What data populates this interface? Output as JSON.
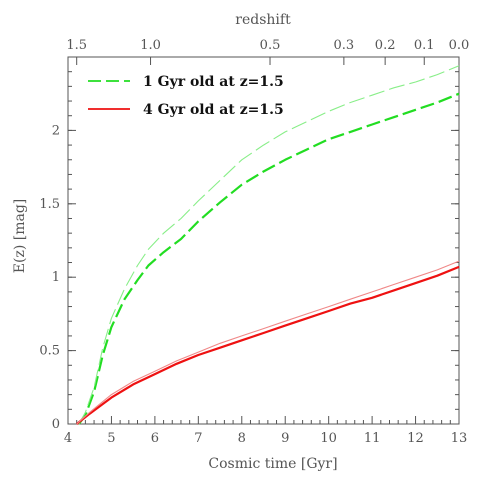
{
  "chart_data": {
    "type": "line",
    "xlabel": "Cosmic time [Gyr]",
    "ylabel": "E(z) [mag]",
    "top_axis_label": "redshift",
    "xlim": [
      4,
      13
    ],
    "ylim": [
      0,
      2.5
    ],
    "x_ticks": [
      4,
      5,
      6,
      7,
      8,
      9,
      10,
      11,
      12,
      13
    ],
    "x_tick_labels": [
      "4",
      "5",
      "6",
      "7",
      "8",
      "9",
      "10",
      "11",
      "12",
      "13"
    ],
    "y_ticks": [
      0,
      0.5,
      1,
      1.5,
      2
    ],
    "y_tick_labels": [
      "0",
      "0.5",
      "1",
      "1.5",
      "2"
    ],
    "top_ticks": [
      {
        "label": "1.5",
        "x": 4.2
      },
      {
        "label": "1.0",
        "x": 5.9
      },
      {
        "label": "0.5",
        "x": 8.65
      },
      {
        "label": "0.3",
        "x": 10.35
      },
      {
        "label": "0.2",
        "x": 11.3
      },
      {
        "label": "0.1",
        "x": 12.2
      },
      {
        "label": "0.0",
        "x": 13.0
      }
    ],
    "legend": [
      {
        "label": "1 Gyr old at z=1.5",
        "color": "#22dd22",
        "style": "dashed"
      },
      {
        "label": "4 Gyr old at z=1.5",
        "color": "#ee1111",
        "style": "solid"
      }
    ],
    "series": [
      {
        "color": "#22dd22",
        "style": "dashed",
        "weight": "thick",
        "points": [
          [
            4.25,
            0
          ],
          [
            4.4,
            0.06
          ],
          [
            4.6,
            0.22
          ],
          [
            4.8,
            0.47
          ],
          [
            5.0,
            0.66
          ],
          [
            5.3,
            0.85
          ],
          [
            5.6,
            0.98
          ],
          [
            5.85,
            1.08
          ],
          [
            6.2,
            1.17
          ],
          [
            6.6,
            1.26
          ],
          [
            7.0,
            1.38
          ],
          [
            7.5,
            1.51
          ],
          [
            8.0,
            1.63
          ],
          [
            8.5,
            1.72
          ],
          [
            9.0,
            1.8
          ],
          [
            9.5,
            1.87
          ],
          [
            10.0,
            1.94
          ],
          [
            10.5,
            1.99
          ],
          [
            11.0,
            2.04
          ],
          [
            11.5,
            2.09
          ],
          [
            12.0,
            2.14
          ],
          [
            12.5,
            2.19
          ],
          [
            13.0,
            2.25
          ]
        ]
      },
      {
        "color": "#88ee88",
        "style": "dashed",
        "weight": "thin",
        "points": [
          [
            4.25,
            0
          ],
          [
            4.4,
            0.08
          ],
          [
            4.6,
            0.25
          ],
          [
            4.8,
            0.52
          ],
          [
            5.0,
            0.72
          ],
          [
            5.3,
            0.92
          ],
          [
            5.6,
            1.08
          ],
          [
            5.85,
            1.19
          ],
          [
            6.2,
            1.3
          ],
          [
            6.6,
            1.4
          ],
          [
            7.0,
            1.52
          ],
          [
            7.5,
            1.66
          ],
          [
            8.0,
            1.8
          ],
          [
            8.5,
            1.9
          ],
          [
            9.0,
            1.99
          ],
          [
            9.5,
            2.06
          ],
          [
            10.0,
            2.13
          ],
          [
            10.5,
            2.19
          ],
          [
            11.0,
            2.24
          ],
          [
            11.5,
            2.29
          ],
          [
            12.0,
            2.33
          ],
          [
            12.5,
            2.38
          ],
          [
            13.0,
            2.44
          ]
        ]
      },
      {
        "color": "#ee1111",
        "style": "solid",
        "weight": "thick",
        "points": [
          [
            4.2,
            0
          ],
          [
            4.5,
            0.07
          ],
          [
            5.0,
            0.18
          ],
          [
            5.5,
            0.27
          ],
          [
            6.0,
            0.34
          ],
          [
            6.5,
            0.41
          ],
          [
            7.0,
            0.47
          ],
          [
            7.5,
            0.52
          ],
          [
            8.0,
            0.57
          ],
          [
            8.5,
            0.62
          ],
          [
            9.0,
            0.67
          ],
          [
            9.5,
            0.72
          ],
          [
            10.0,
            0.77
          ],
          [
            10.5,
            0.82
          ],
          [
            11.0,
            0.86
          ],
          [
            11.5,
            0.91
          ],
          [
            12.0,
            0.96
          ],
          [
            12.5,
            1.01
          ],
          [
            13.0,
            1.07
          ]
        ]
      },
      {
        "color": "#f08888",
        "style": "solid",
        "weight": "thin",
        "points": [
          [
            4.2,
            0
          ],
          [
            4.5,
            0.08
          ],
          [
            5.0,
            0.2
          ],
          [
            5.5,
            0.29
          ],
          [
            6.0,
            0.36
          ],
          [
            6.5,
            0.43
          ],
          [
            7.0,
            0.49
          ],
          [
            7.5,
            0.55
          ],
          [
            8.0,
            0.6
          ],
          [
            8.5,
            0.65
          ],
          [
            9.0,
            0.7
          ],
          [
            9.5,
            0.75
          ],
          [
            10.0,
            0.8
          ],
          [
            10.5,
            0.85
          ],
          [
            11.0,
            0.9
          ],
          [
            11.5,
            0.95
          ],
          [
            12.0,
            1.0
          ],
          [
            12.5,
            1.05
          ],
          [
            13.0,
            1.11
          ]
        ]
      }
    ]
  }
}
